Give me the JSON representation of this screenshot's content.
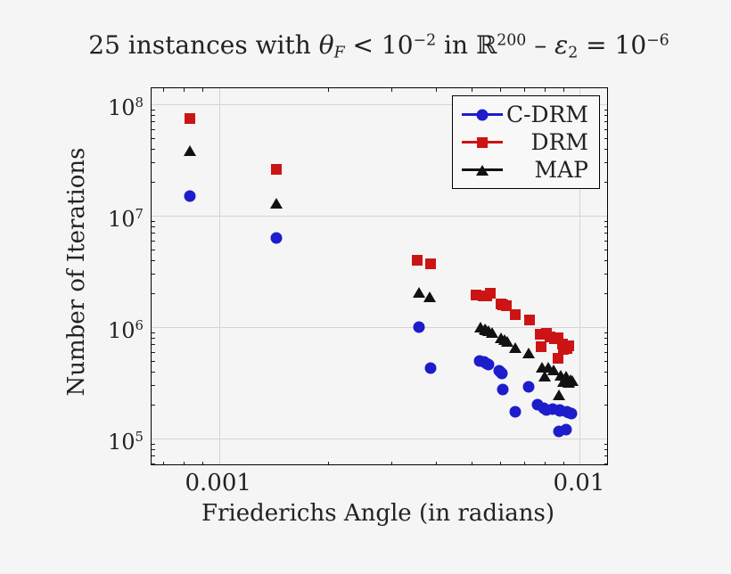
{
  "page": {
    "background": "#f5f5f6"
  },
  "chart_data": {
    "type": "scatter",
    "title_plain": "25 instances with θF < 10−2 in ℝ200 – ε2 = 10−6",
    "title_segments": [
      {
        "t": "25 instances with "
      },
      {
        "t": "θ",
        "style": "it"
      },
      {
        "t": "F",
        "style": "sub it"
      },
      {
        "t": " < 10"
      },
      {
        "t": "−2",
        "style": "sup"
      },
      {
        "t": " in "
      },
      {
        "t": "ℝ"
      },
      {
        "t": "200",
        "style": "sup"
      },
      {
        "t": " – "
      },
      {
        "t": "ε",
        "style": "it"
      },
      {
        "t": "2",
        "style": "sub"
      },
      {
        "t": " = 10"
      },
      {
        "t": "−6",
        "style": "sup"
      }
    ],
    "xlabel": "Friederichs Angle (in radians)",
    "ylabel": "Number of Iterations",
    "x_scale": "log",
    "y_scale": "log",
    "xlim": [
      0.00065,
      0.0119
    ],
    "ylim": [
      58600,
      139000000
    ],
    "grid": true,
    "grid_color": "#d4d4d4",
    "legend_position": "top-right",
    "x_ticks": [
      {
        "value": 0.001,
        "label": "0.001"
      },
      {
        "value": 0.01,
        "label": "0.01"
      }
    ],
    "y_ticks": [
      {
        "value": 100000,
        "base": "10",
        "exp": "5"
      },
      {
        "value": 1000000,
        "base": "10",
        "exp": "6"
      },
      {
        "value": 10000000,
        "base": "10",
        "exp": "7"
      },
      {
        "value": 100000000,
        "base": "10",
        "exp": "8"
      }
    ],
    "series": [
      {
        "name": "C-DRM",
        "marker": "circle",
        "color": "#1d1dcc",
        "points": [
          [
            0.00083,
            15000000
          ],
          [
            0.00144,
            6300000
          ],
          [
            0.00359,
            990000
          ],
          [
            0.00386,
            430000
          ],
          [
            0.00527,
            500000
          ],
          [
            0.00543,
            485000
          ],
          [
            0.00553,
            470000
          ],
          [
            0.00557,
            465000
          ],
          [
            0.00598,
            406000
          ],
          [
            0.00605,
            390000
          ],
          [
            0.00608,
            385000
          ],
          [
            0.00613,
            275000
          ],
          [
            0.00662,
            173000
          ],
          [
            0.00722,
            290000
          ],
          [
            0.00763,
            200000
          ],
          [
            0.00795,
            188000
          ],
          [
            0.0081,
            181000
          ],
          [
            0.00843,
            185000
          ],
          [
            0.00877,
            116000
          ],
          [
            0.00878,
            180000
          ],
          [
            0.0088,
            178000
          ],
          [
            0.00918,
            121000
          ],
          [
            0.00922,
            173000
          ],
          [
            0.0093,
            171000
          ],
          [
            0.0095,
            168000
          ]
        ]
      },
      {
        "name": "DRM",
        "marker": "square",
        "color": "#cc1414",
        "points": [
          [
            0.00083,
            75000000
          ],
          [
            0.00144,
            26000000
          ],
          [
            0.00355,
            4000000
          ],
          [
            0.00386,
            3700000
          ],
          [
            0.00517,
            1940000
          ],
          [
            0.0054,
            1920000
          ],
          [
            0.00551,
            1900000
          ],
          [
            0.00565,
            2000000
          ],
          [
            0.00604,
            1600000
          ],
          [
            0.0061,
            1580000
          ],
          [
            0.00626,
            1550000
          ],
          [
            0.00664,
            1290000
          ],
          [
            0.00724,
            1150000
          ],
          [
            0.00778,
            866000
          ],
          [
            0.00783,
            670000
          ],
          [
            0.00808,
            880000
          ],
          [
            0.00828,
            810000
          ],
          [
            0.0085,
            790000
          ],
          [
            0.0087,
            520000
          ],
          [
            0.00871,
            800000
          ],
          [
            0.00895,
            710000
          ],
          [
            0.00898,
            625000
          ],
          [
            0.0091,
            650000
          ],
          [
            0.00922,
            640000
          ],
          [
            0.00933,
            680000
          ]
        ]
      },
      {
        "name": "MAP",
        "marker": "triangle",
        "color": "#111111",
        "points": [
          [
            0.00083,
            38000000
          ],
          [
            0.00144,
            12900000
          ],
          [
            0.00359,
            2060000
          ],
          [
            0.00384,
            1880000
          ],
          [
            0.0053,
            990000
          ],
          [
            0.00546,
            960000
          ],
          [
            0.0055,
            940000
          ],
          [
            0.00557,
            920000
          ],
          [
            0.0057,
            900000
          ],
          [
            0.00604,
            800000
          ],
          [
            0.00619,
            770000
          ],
          [
            0.0063,
            750000
          ],
          [
            0.00664,
            650000
          ],
          [
            0.00722,
            590000
          ],
          [
            0.00784,
            435000
          ],
          [
            0.008,
            365000
          ],
          [
            0.00818,
            435000
          ],
          [
            0.00846,
            410000
          ],
          [
            0.00877,
            247000
          ],
          [
            0.00886,
            370000
          ],
          [
            0.00898,
            325000
          ],
          [
            0.00917,
            365000
          ],
          [
            0.0093,
            320000
          ],
          [
            0.0094,
            340000
          ],
          [
            0.00955,
            330000
          ]
        ]
      }
    ]
  }
}
